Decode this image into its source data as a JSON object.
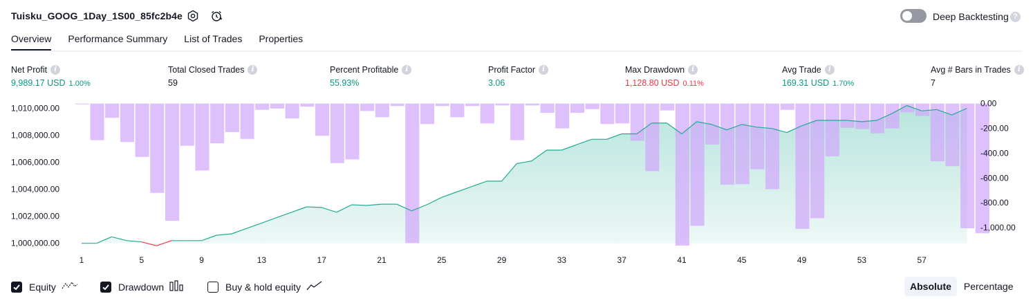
{
  "header": {
    "strategy_name": "Tuisku_GOOG_1Day_1S00_85fc2b4e",
    "settings_icon": "gear-icon",
    "alert_icon": "alarm-clock-icon",
    "deep_backtesting_label": "Deep Backtesting",
    "deep_backtesting_on": false
  },
  "tabs": [
    {
      "label": "Overview",
      "active": true
    },
    {
      "label": "Performance Summary",
      "active": false
    },
    {
      "label": "List of Trades",
      "active": false
    },
    {
      "label": "Properties",
      "active": false
    }
  ],
  "metrics": {
    "net_profit": {
      "label": "Net Profit",
      "value": "9,989.17 USD",
      "pct": "1.00%"
    },
    "total_closed_trades": {
      "label": "Total Closed Trades",
      "value": "59"
    },
    "percent_profitable": {
      "label": "Percent Profitable",
      "value": "55.93%"
    },
    "profit_factor": {
      "label": "Profit Factor",
      "value": "3.06"
    },
    "max_drawdown": {
      "label": "Max Drawdown",
      "value": "1,128.80 USD",
      "pct": "0.11%"
    },
    "avg_trade": {
      "label": "Avg Trade",
      "value": "169.31 USD",
      "pct": "1.70%"
    },
    "avg_bars": {
      "label": "Avg # Bars in Trades",
      "value": "7"
    }
  },
  "chart_data": {
    "type": "area+bar",
    "x_ticks": [
      "1",
      "5",
      "9",
      "13",
      "17",
      "21",
      "25",
      "29",
      "33",
      "37",
      "41",
      "45",
      "49",
      "53",
      "57"
    ],
    "left_axis": {
      "ticks": [
        "1,010,000.00",
        "1,008,000.00",
        "1,006,000.00",
        "1,004,000.00",
        "1,002,000.00",
        "1,000,000.00"
      ],
      "ylim": [
        999830,
        1010380
      ]
    },
    "right_axis": {
      "ticks": [
        "0.00",
        "-200.00",
        "-400.00",
        "-600.00",
        "-800.00",
        "-1,000.00"
      ],
      "ylim": [
        -1145,
        4
      ]
    },
    "equity_series": {
      "name": "Equity",
      "color": "#22ab94",
      "negative_color": "#f23645",
      "x": [
        1,
        2,
        3,
        4,
        5,
        6,
        7,
        8,
        9,
        10,
        11,
        12,
        13,
        14,
        15,
        16,
        17,
        18,
        19,
        20,
        21,
        22,
        23,
        24,
        25,
        26,
        27,
        28,
        29,
        30,
        31,
        32,
        33,
        34,
        35,
        36,
        37,
        38,
        39,
        40,
        41,
        42,
        43,
        44,
        45,
        46,
        47,
        48,
        49,
        50,
        51,
        52,
        53,
        54,
        55,
        56,
        57,
        58,
        59,
        60
      ],
      "values": [
        1000000,
        1000000,
        1000480,
        1000200,
        1000100,
        999820,
        1000200,
        1000200,
        1000200,
        1000600,
        1000700,
        1001100,
        1001500,
        1001900,
        1002300,
        1002700,
        1002650,
        1002300,
        1002850,
        1002800,
        1002900,
        1002900,
        1002400,
        1002850,
        1003400,
        1003800,
        1004200,
        1004600,
        1004600,
        1005900,
        1006100,
        1006900,
        1006900,
        1007300,
        1007700,
        1007700,
        1008100,
        1008100,
        1008900,
        1008900,
        1008100,
        1009000,
        1008800,
        1008400,
        1008800,
        1008600,
        1008500,
        1008200,
        1008700,
        1009100,
        1009100,
        1009100,
        1009000,
        1009100,
        1009600,
        1010200,
        1009800,
        1009900,
        1009500,
        1009990
      ]
    },
    "drawdown_series": {
      "name": "Drawdown",
      "color": "#d1a8fb",
      "values": [
        -5,
        -295,
        -115,
        -310,
        -430,
        -720,
        -945,
        -340,
        -540,
        -320,
        -230,
        -285,
        -50,
        -40,
        -120,
        -25,
        -260,
        -480,
        -450,
        -60,
        -110,
        -20,
        -1125,
        -165,
        -20,
        -110,
        -20,
        -160,
        -15,
        -295,
        -15,
        -75,
        -200,
        -75,
        -45,
        -165,
        -160,
        -300,
        -545,
        -55,
        -1145,
        -985,
        -330,
        -655,
        -650,
        -530,
        -690,
        -50,
        -1010,
        -925,
        -425,
        -195,
        -205,
        -240,
        -200,
        -70,
        -100,
        -465,
        -505,
        -1005,
        -1045
      ]
    },
    "legend": [
      {
        "label": "Equity",
        "checked": true,
        "icon": "equity-line-icon"
      },
      {
        "label": "Drawdown",
        "checked": true,
        "icon": "drawdown-bars-icon"
      },
      {
        "label": "Buy & hold equity",
        "checked": false,
        "icon": "buy-hold-line-icon"
      }
    ],
    "mode_options": [
      "Absolute",
      "Percentage"
    ],
    "mode_selected": "Absolute"
  }
}
